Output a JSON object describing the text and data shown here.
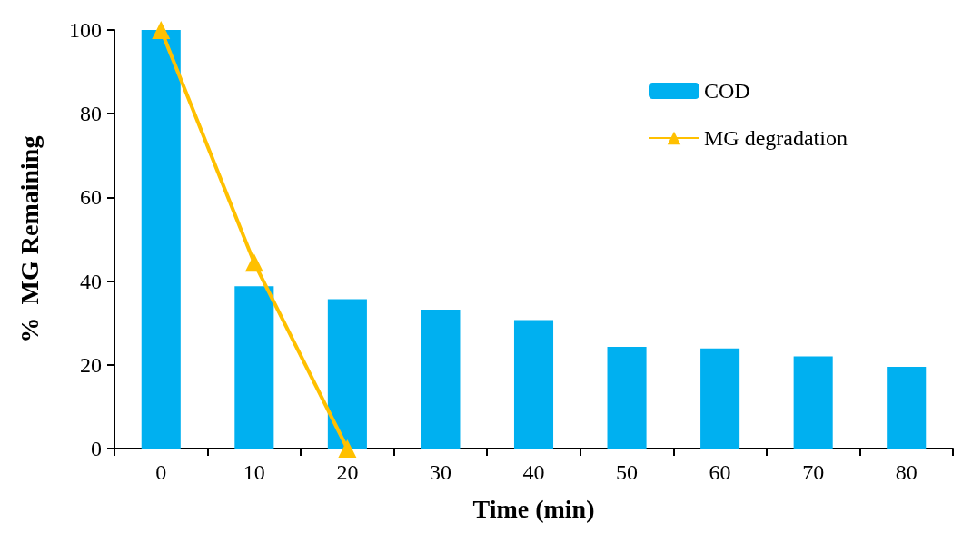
{
  "chart_data": {
    "type": "bar",
    "xlabel": "Time (min)",
    "ylabel": "%  MG Remaining",
    "categories": [
      "0",
      "10",
      "20",
      "30",
      "40",
      "50",
      "60",
      "70",
      "80"
    ],
    "series": [
      {
        "name": "COD",
        "color": "#00b0f0",
        "values": [
          100,
          38.8,
          35.7,
          33.2,
          30.7,
          24.3,
          23.9,
          22.0,
          19.5
        ]
      },
      {
        "name": "MG degradation",
        "type": "line",
        "color": "#ffc000",
        "marker": "triangle",
        "values": [
          100,
          44.4,
          0,
          null,
          null,
          null,
          null,
          null,
          null
        ]
      }
    ],
    "ylim": [
      0,
      100
    ],
    "yticks": [
      0,
      20,
      40,
      60,
      80,
      100
    ],
    "grid": false,
    "legend": "top right"
  }
}
